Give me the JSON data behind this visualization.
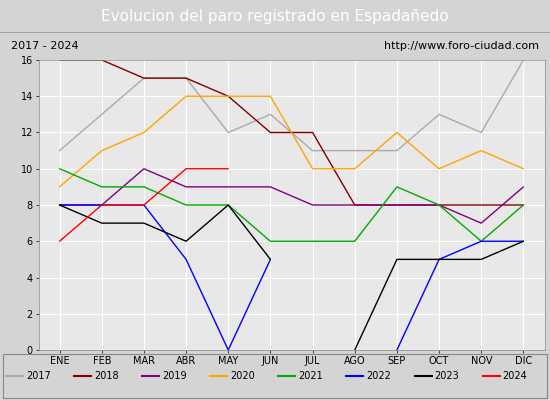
{
  "title": "Evolucion del paro registrado en Españedo",
  "title_display": "Evolucion del paro registrado en Españedo",
  "subtitle_left": "2017 - 2024",
  "subtitle_right": "http://www.foro-ciudad.com",
  "months": [
    "ENE",
    "FEB",
    "MAR",
    "ABR",
    "MAY",
    "JUN",
    "JUL",
    "AGO",
    "SEP",
    "OCT",
    "NOV",
    "DIC"
  ],
  "series": {
    "2017": {
      "color": "#aaaaaa",
      "values": [
        11,
        13,
        15,
        15,
        12,
        13,
        11,
        11,
        11,
        13,
        12,
        16
      ]
    },
    "2018": {
      "color": "#800000",
      "values": [
        16,
        16,
        15,
        15,
        14,
        12,
        12,
        8,
        8,
        8,
        8,
        8
      ]
    },
    "2019": {
      "color": "#800080",
      "values": [
        8,
        8,
        10,
        9,
        9,
        9,
        8,
        8,
        8,
        8,
        7,
        9
      ]
    },
    "2020": {
      "color": "#ffa500",
      "values": [
        9,
        11,
        12,
        14,
        14,
        14,
        10,
        10,
        12,
        10,
        11,
        10
      ]
    },
    "2021": {
      "color": "#00aa00",
      "values": [
        10,
        9,
        9,
        8,
        8,
        6,
        6,
        6,
        9,
        8,
        6,
        8
      ]
    },
    "2022": {
      "color": "#0000ff",
      "values": [
        8,
        8,
        8,
        5,
        0,
        5,
        null,
        null,
        0,
        5,
        6,
        6
      ]
    },
    "2023": {
      "color": "#000000",
      "values": [
        8,
        7,
        7,
        6,
        8,
        5,
        null,
        0,
        5,
        5,
        5,
        6
      ]
    },
    "2024": {
      "color": "#ff0000",
      "values": [
        6,
        8,
        8,
        10,
        10,
        null,
        null,
        null,
        null,
        null,
        null,
        null
      ]
    }
  },
  "ylim": [
    0,
    16
  ],
  "yticks": [
    0,
    2,
    4,
    6,
    8,
    10,
    12,
    14,
    16
  ],
  "title_bg_color": "#4472c4",
  "title_font_color": "#ffffff",
  "subtitle_bg_color": "#d4d4d4",
  "plot_bg_color": "#e8e8e8",
  "grid_color": "#ffffff",
  "legend_bg_color": "#d4d4d4",
  "fig_bg_color": "#d4d4d4"
}
